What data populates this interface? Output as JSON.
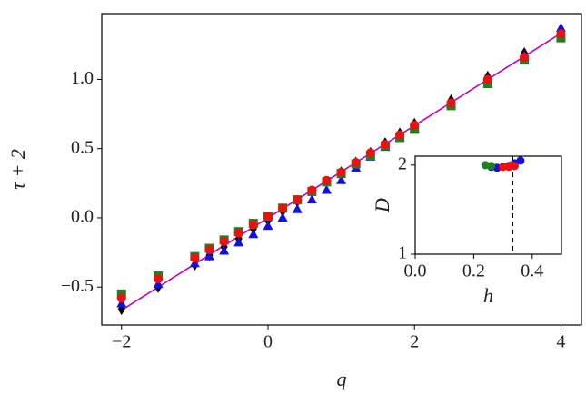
{
  "chart_data": [
    {
      "type": "scatter",
      "xlabel": "q",
      "ylabel": "τ + 2",
      "xlim": [
        -2.27,
        4.28
      ],
      "ylim": [
        -0.774,
        1.475
      ],
      "xticks": [
        {
          "value": -2,
          "label": "−2"
        },
        0,
        2,
        4
      ],
      "yticks": [
        {
          "value": -0.5,
          "label": "−0.5"
        },
        {
          "value": 0,
          "label": "0.0"
        },
        {
          "value": 0.5,
          "label": "0.5"
        },
        {
          "value": 1,
          "label": "1.0"
        }
      ],
      "x": [
        -2,
        -1.5,
        -1,
        -0.8,
        -0.6,
        -0.4,
        -0.2,
        0,
        0.2,
        0.4,
        0.6,
        0.8,
        1,
        1.2,
        1.4,
        1.6,
        1.8,
        2,
        2.5,
        3,
        3.5,
        4
      ],
      "fit": {
        "color": "#c000c0",
        "x": [
          -2,
          4
        ],
        "values": [
          -0.667,
          1.333
        ]
      },
      "series": [
        {
          "color": "#000000",
          "marker": "diamond",
          "values": [
            -0.66,
            -0.5,
            -0.34,
            -0.27,
            -0.21,
            -0.15,
            -0.08,
            -0.02,
            0.05,
            0.12,
            0.19,
            0.26,
            0.33,
            0.4,
            0.47,
            0.54,
            0.61,
            0.68,
            0.85,
            1.02,
            1.19,
            1.36
          ]
        },
        {
          "color": "#1010e0",
          "marker": "triangle",
          "values": [
            -0.62,
            -0.48,
            -0.33,
            -0.28,
            -0.24,
            -0.18,
            -0.12,
            -0.06,
            0.0,
            0.06,
            0.13,
            0.2,
            0.27,
            0.36,
            0.44,
            0.51,
            0.58,
            0.64,
            0.82,
            1.0,
            1.17,
            1.37
          ]
        },
        {
          "color": "#208020",
          "marker": "square",
          "values": [
            -0.55,
            -0.42,
            -0.28,
            -0.22,
            -0.16,
            -0.1,
            -0.04,
            0.01,
            0.07,
            0.13,
            0.19,
            0.26,
            0.32,
            0.39,
            0.45,
            0.52,
            0.58,
            0.64,
            0.81,
            0.97,
            1.14,
            1.3
          ]
        },
        {
          "color": "#ee1010",
          "marker": "circle",
          "values": [
            -0.58,
            -0.44,
            -0.29,
            -0.23,
            -0.17,
            -0.11,
            -0.05,
            0.01,
            0.07,
            0.13,
            0.2,
            0.27,
            0.33,
            0.4,
            0.47,
            0.53,
            0.6,
            0.67,
            0.83,
            1.0,
            1.16,
            1.33
          ]
        }
      ]
    },
    {
      "type": "scatter",
      "xlabel": "h",
      "ylabel": "D",
      "xlim": [
        0,
        0.5
      ],
      "ylim": [
        1,
        2.1
      ],
      "xticks": [
        {
          "value": 0,
          "label": "0.0"
        },
        {
          "value": 0.2,
          "label": "0.2"
        },
        {
          "value": 0.4,
          "label": "0.4"
        }
      ],
      "yticks": [
        1,
        2
      ],
      "vline": {
        "x": 0.333,
        "color": "#000000"
      },
      "series": [
        {
          "color": "#1010e0",
          "marker": "circle",
          "x": [
            0.24,
            0.26,
            0.28,
            0.3,
            0.32,
            0.34,
            0.36
          ],
          "values": [
            2.0,
            1.98,
            1.97,
            1.98,
            1.99,
            2.02,
            2.05
          ]
        },
        {
          "color": "#208020",
          "marker": "circle",
          "x": [
            0.24,
            0.26
          ],
          "values": [
            2.0,
            1.99
          ]
        },
        {
          "color": "#ee1010",
          "marker": "circle",
          "x": [
            0.3,
            0.32,
            0.33,
            0.34
          ],
          "values": [
            1.98,
            1.98,
            2.0,
            1.99
          ]
        }
      ]
    }
  ]
}
